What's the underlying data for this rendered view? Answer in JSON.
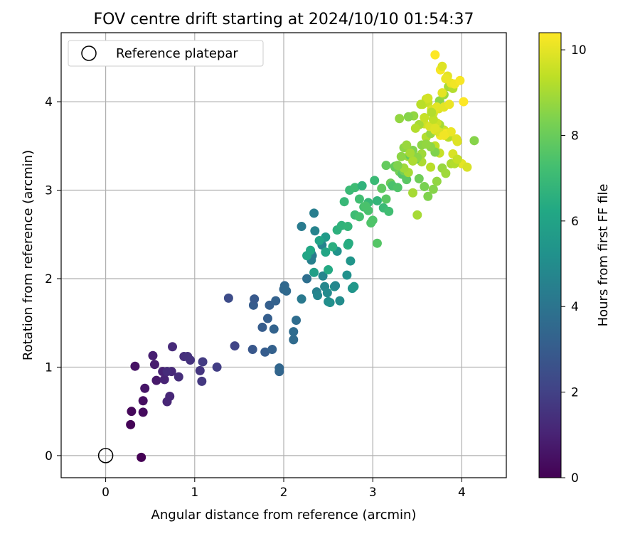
{
  "chart_data": {
    "type": "scatter",
    "title": "FOV centre drift starting at 2024/10/10 01:54:37",
    "xlabel": "Angular distance from reference (arcmin)",
    "ylabel": "Rotation from reference (arcmin)",
    "xlim": [
      -0.5,
      4.5
    ],
    "ylim": [
      -0.25,
      4.78
    ],
    "xticks": [
      "0",
      "1",
      "2",
      "3",
      "4"
    ],
    "yticks": [
      "0",
      "1",
      "2",
      "3",
      "4"
    ],
    "grid": true,
    "legend": {
      "position": "top-left",
      "entries": [
        "Reference platepar"
      ]
    },
    "reference_point": {
      "x": 0,
      "y": 0,
      "label": "Reference platepar"
    },
    "colorbar": {
      "label": "Hours from first FF file",
      "range": [
        0,
        10.4
      ],
      "ticks": [
        "0",
        "2",
        "4",
        "6",
        "8",
        "10"
      ],
      "colormap": "viridis"
    },
    "series": [
      {
        "x": [
          0.4,
          0.28,
          0.29,
          0.42,
          0.42,
          0.33,
          0.44,
          0.57,
          0.55,
          0.53,
          0.64,
          0.66,
          0.69,
          0.72,
          0.74,
          0.75,
          0.69,
          0.82,
          0.88,
          0.92,
          0.95,
          1.06,
          1.08,
          1.09,
          1.25,
          1.38,
          1.45,
          1.65,
          1.66,
          1.67,
          1.76,
          1.79,
          1.82,
          1.84,
          1.87,
          1.91,
          1.89,
          1.95,
          1.95,
          2.0,
          2.01,
          2.03,
          2.11,
          2.11,
          2.14,
          2.2,
          2.2,
          2.26,
          2.31,
          2.31,
          2.32,
          2.34,
          2.37,
          2.35,
          2.38,
          2.43,
          2.44,
          2.46,
          2.47,
          2.49,
          2.5,
          2.52,
          2.57,
          2.58,
          2.6,
          2.63,
          2.71,
          2.72,
          2.75,
          2.77,
          2.79,
          2.26,
          2.3,
          2.34,
          2.4,
          2.47,
          2.5,
          2.55,
          2.6,
          2.65,
          2.72,
          2.73,
          2.8,
          2.85,
          2.9,
          2.95,
          3.0,
          3.05,
          3.1,
          3.15,
          3.2,
          3.25,
          3.3,
          3.35,
          3.4,
          3.45,
          3.5,
          3.55,
          3.6,
          3.65,
          3.7,
          3.75,
          3.8,
          3.85,
          3.9,
          3.95,
          4.0,
          3.05,
          3.12,
          3.18,
          3.22,
          3.28,
          3.33,
          3.38,
          3.42,
          3.48,
          3.52,
          3.58,
          3.62,
          3.68,
          3.72,
          3.78,
          3.82,
          3.88,
          3.92,
          2.68,
          2.74,
          2.8,
          2.88,
          2.95,
          3.02,
          2.85,
          2.92,
          2.98,
          3.15,
          3.25,
          3.35,
          3.45,
          3.55,
          3.65,
          3.75,
          3.85,
          3.95,
          4.06,
          4.14,
          3.75,
          3.8,
          3.85,
          3.9,
          3.7,
          3.65,
          3.6,
          3.55,
          3.5,
          3.45,
          3.4,
          3.35,
          3.3,
          3.62,
          3.68,
          3.74,
          3.8,
          3.86,
          3.58,
          3.64,
          3.7,
          3.76,
          3.82,
          3.88,
          3.94,
          3.52,
          3.46,
          3.4,
          3.56,
          3.6,
          3.66,
          3.72,
          3.48,
          3.42,
          3.38,
          3.32,
          3.28,
          3.7,
          3.76,
          3.82,
          3.88,
          3.78,
          3.84,
          3.92,
          3.98,
          4.02,
          3.62,
          3.58,
          3.54,
          3.72,
          3.68,
          3.66,
          3.78,
          3.82,
          3.74,
          3.8,
          3.7
        ],
        "y": [
          -0.02,
          0.35,
          0.5,
          0.49,
          0.62,
          1.01,
          0.76,
          0.85,
          1.03,
          1.13,
          0.95,
          0.86,
          0.61,
          0.67,
          0.95,
          1.23,
          0.95,
          0.89,
          1.12,
          1.12,
          1.08,
          0.96,
          0.84,
          1.06,
          1.0,
          1.78,
          1.24,
          1.2,
          1.7,
          1.77,
          1.45,
          1.17,
          1.55,
          1.7,
          1.2,
          1.75,
          1.43,
          0.95,
          0.99,
          1.88,
          1.92,
          1.86,
          1.31,
          1.4,
          1.53,
          1.77,
          2.59,
          2.0,
          2.28,
          2.21,
          2.26,
          2.74,
          1.85,
          2.54,
          1.81,
          2.38,
          2.03,
          1.91,
          2.47,
          1.84,
          1.74,
          1.73,
          1.91,
          1.92,
          2.31,
          1.75,
          2.04,
          2.38,
          2.2,
          1.89,
          1.91,
          2.26,
          2.32,
          2.07,
          2.43,
          2.3,
          2.1,
          2.36,
          2.55,
          2.6,
          2.59,
          2.4,
          2.72,
          2.9,
          2.81,
          2.77,
          2.66,
          2.4,
          3.02,
          3.28,
          3.08,
          3.26,
          3.21,
          3.48,
          3.38,
          2.97,
          2.72,
          3.32,
          3.6,
          3.26,
          3.5,
          3.42,
          3.68,
          3.6,
          3.41,
          3.55,
          3.3,
          2.88,
          2.8,
          2.76,
          3.05,
          3.03,
          3.18,
          3.12,
          3.39,
          3.35,
          3.13,
          3.04,
          2.93,
          3.01,
          3.1,
          3.25,
          3.19,
          3.3,
          3.3,
          2.87,
          3.0,
          3.03,
          3.05,
          2.86,
          3.11,
          2.7,
          2.82,
          2.63,
          2.9,
          3.27,
          3.22,
          3.45,
          3.51,
          3.64,
          3.74,
          3.6,
          3.35,
          3.26,
          3.56,
          4.01,
          4.08,
          4.17,
          4.15,
          3.43,
          3.49,
          3.52,
          3.41,
          3.37,
          3.33,
          3.2,
          3.25,
          3.81,
          3.99,
          3.87,
          3.92,
          3.94,
          3.97,
          3.75,
          3.72,
          3.68,
          3.62,
          3.64,
          3.66,
          3.58,
          3.74,
          3.84,
          3.83,
          3.97,
          4.03,
          3.91,
          3.94,
          3.7,
          3.42,
          3.51,
          3.38,
          3.28,
          4.53,
          4.36,
          4.26,
          4.21,
          4.4,
          4.29,
          4.2,
          4.24,
          4.0,
          4.04,
          3.82,
          3.97,
          3.76,
          3.8,
          3.88,
          4.1,
          4.26,
          3.66,
          3.62,
          3.7
        ],
        "hours": [
          0.0,
          0.1,
          0.2,
          0.3,
          0.4,
          0.5,
          0.6,
          0.7,
          0.8,
          0.9,
          1.0,
          1.05,
          1.1,
          1.15,
          1.2,
          1.25,
          1.3,
          1.35,
          1.4,
          1.45,
          1.5,
          1.6,
          1.7,
          1.8,
          1.9,
          2.4,
          2.1,
          2.8,
          3.0,
          2.9,
          3.0,
          3.05,
          3.1,
          3.15,
          3.2,
          3.25,
          3.3,
          3.35,
          3.4,
          3.45,
          3.5,
          3.55,
          3.6,
          3.65,
          3.7,
          4.2,
          4.3,
          3.8,
          4.4,
          4.5,
          4.3,
          4.4,
          4.5,
          4.6,
          4.7,
          4.6,
          4.7,
          4.8,
          5.6,
          4.9,
          5.0,
          5.1,
          5.2,
          4.8,
          5.3,
          5.0,
          5.2,
          6.5,
          5.4,
          5.3,
          5.5,
          6.1,
          6.2,
          5.8,
          6.0,
          6.1,
          6.3,
          6.5,
          6.6,
          6.7,
          6.8,
          6.4,
          7.1,
          7.2,
          7.3,
          7.4,
          7.5,
          7.6,
          7.8,
          7.9,
          8.0,
          8.1,
          8.2,
          8.6,
          8.8,
          9.0,
          9.0,
          9.1,
          9.2,
          9.3,
          9.4,
          9.5,
          9.6,
          9.7,
          9.8,
          9.9,
          10.0,
          6.8,
          7.0,
          7.2,
          7.4,
          7.5,
          7.6,
          7.7,
          7.9,
          8.0,
          8.1,
          8.3,
          8.4,
          8.5,
          8.7,
          8.8,
          8.9,
          9.1,
          9.2,
          6.9,
          7.0,
          7.1,
          6.7,
          6.9,
          7.0,
          7.3,
          7.4,
          7.5,
          7.7,
          7.9,
          8.2,
          8.4,
          8.6,
          8.8,
          9.0,
          9.3,
          9.5,
          9.8,
          8.5,
          8.6,
          8.8,
          9.0,
          9.2,
          8.4,
          8.6,
          8.7,
          8.9,
          8.6,
          9.1,
          9.0,
          8.9,
          8.7,
          9.5,
          9.7,
          9.9,
          10.0,
          10.1,
          9.6,
          9.8,
          10.0,
          10.2,
          10.3,
          10.1,
          9.9,
          9.0,
          8.7,
          8.5,
          9.4,
          9.6,
          9.8,
          10.0,
          9.2,
          9.0,
          8.8,
          8.6,
          8.4,
          10.4,
          10.3,
          10.2,
          10.1,
          9.9,
          10.0,
          10.2,
          10.3,
          10.4,
          9.7,
          9.5,
          9.3,
          9.6,
          9.4,
          9.2,
          10.0,
          10.1,
          9.8,
          10.2,
          9.9
        ]
      }
    ]
  }
}
